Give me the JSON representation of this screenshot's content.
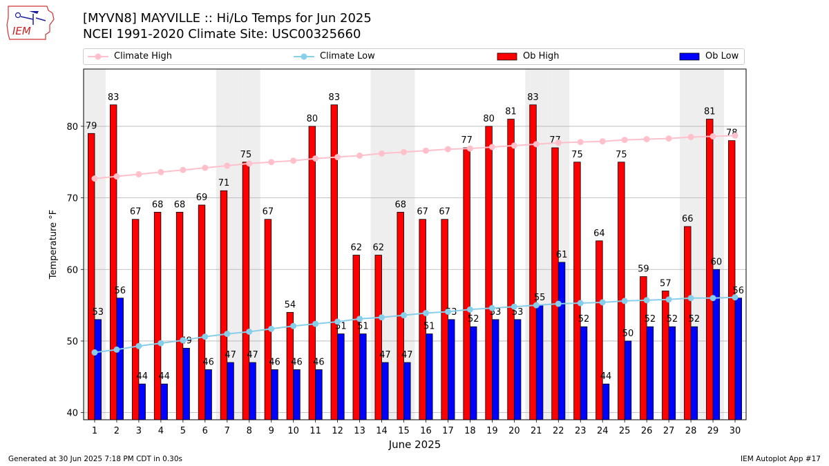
{
  "header": {
    "logo_text": "IEM",
    "title_line_1": "[MYVN8] MAYVILLE :: Hi/Lo Temps for Jun 2025",
    "title_line_2": "NCEI 1991-2020 Climate Site: USC00325660"
  },
  "legend": {
    "climate_high": "Climate High",
    "climate_low": "Climate Low",
    "ob_high": "Ob High",
    "ob_low": "Ob Low"
  },
  "footer": {
    "generated": "Generated at 30 Jun 2025 7:18 PM CDT in 0.30s",
    "app": "IEM Autoplot App #17"
  },
  "colors": {
    "ob_high": "#ff0000",
    "ob_low": "#0000ff",
    "climate_high": "#ffc0cb",
    "climate_low": "#87ceeb",
    "weekend_band": "#eeeeee",
    "grid": "#b0b0b0"
  },
  "chart_data": {
    "type": "bar",
    "title": "[MYVN8] MAYVILLE :: Hi/Lo Temps for Jun 2025",
    "subtitle": "NCEI 1991-2020 Climate Site: USC00325660",
    "xlabel": "June 2025",
    "ylabel": "Temperature °F",
    "categories": [
      "1",
      "2",
      "3",
      "4",
      "5",
      "6",
      "7",
      "8",
      "9",
      "10",
      "11",
      "12",
      "13",
      "14",
      "15",
      "16",
      "17",
      "18",
      "19",
      "20",
      "21",
      "22",
      "23",
      "24",
      "25",
      "26",
      "27",
      "28",
      "29",
      "30"
    ],
    "ylim": [
      39,
      88
    ],
    "yticks": [
      40,
      50,
      60,
      70,
      80
    ],
    "grid": "horizontal",
    "legend_position": "top",
    "weekend_days": [
      1,
      7,
      8,
      14,
      15,
      21,
      22,
      28,
      29
    ],
    "series": [
      {
        "name": "Ob High",
        "kind": "bar",
        "values": [
          79,
          83,
          67,
          68,
          68,
          69,
          71,
          75,
          67,
          54,
          80,
          83,
          62,
          62,
          68,
          67,
          67,
          77,
          80,
          81,
          83,
          77,
          75,
          64,
          75,
          59,
          57,
          66,
          81,
          78
        ]
      },
      {
        "name": "Ob Low",
        "kind": "bar",
        "values": [
          53,
          56,
          44,
          44,
          49,
          46,
          47,
          47,
          46,
          46,
          46,
          51,
          51,
          47,
          47,
          51,
          53,
          52,
          53,
          53,
          55,
          61,
          52,
          44,
          50,
          52,
          52,
          52,
          60,
          56
        ]
      },
      {
        "name": "Climate High",
        "kind": "line",
        "values": [
          72.7,
          73.0,
          73.3,
          73.6,
          73.9,
          74.2,
          74.5,
          74.8,
          75.0,
          75.2,
          75.5,
          75.7,
          75.9,
          76.2,
          76.4,
          76.6,
          76.8,
          76.9,
          77.1,
          77.3,
          77.5,
          77.7,
          77.8,
          77.9,
          78.1,
          78.2,
          78.3,
          78.5,
          78.6,
          78.7
        ]
      },
      {
        "name": "Climate Low",
        "kind": "line",
        "values": [
          48.4,
          48.8,
          49.3,
          49.7,
          50.1,
          50.6,
          51.0,
          51.3,
          51.7,
          52.1,
          52.4,
          52.7,
          53.1,
          53.3,
          53.6,
          53.9,
          54.1,
          54.4,
          54.6,
          54.8,
          55.0,
          55.2,
          55.3,
          55.4,
          55.6,
          55.7,
          55.8,
          56.0,
          56.0,
          56.1
        ]
      }
    ]
  }
}
